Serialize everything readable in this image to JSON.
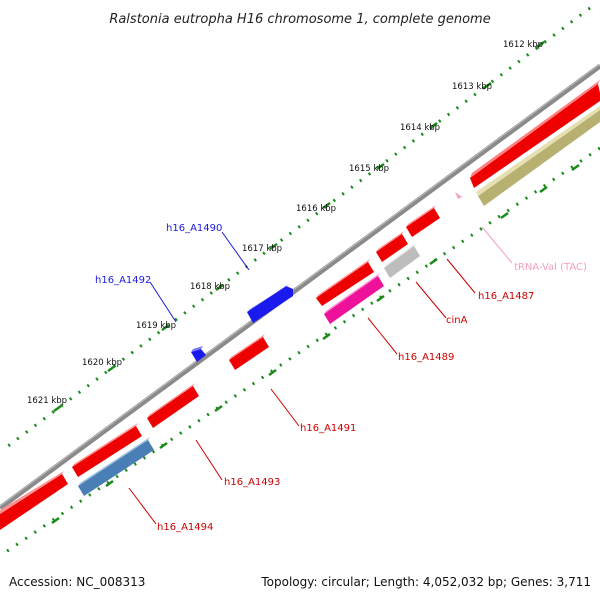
{
  "title": "Ralstonia eutropha H16 chromosome 1, complete genome",
  "footer": {
    "accession": "Accession: NC_008313",
    "summary": "Topology: circular; Length: 4,052,032 bp; Genes: 3,711"
  },
  "ticks": [
    "1612 kbp",
    "1613 kbp",
    "1614 kbp",
    "1615 kbp",
    "1616 kbp",
    "1617 kbp",
    "1618 kbp",
    "1619 kbp",
    "1620 kbp",
    "1621 kbp"
  ],
  "features": [
    {
      "label": "h16_A1490",
      "strand": "forward",
      "color": "#1a1add"
    },
    {
      "label": "h16_A1492",
      "strand": "forward",
      "color": "#1a1add"
    },
    {
      "label": "h16_A1487",
      "strand": "reverse",
      "color": "#cc0000"
    },
    {
      "label": "tRNA-Val (TAC)",
      "strand": "reverse",
      "color": "#f4a0c0"
    },
    {
      "label": "cinA",
      "strand": "reverse",
      "color": "#cc0000"
    },
    {
      "label": "h16_A1489",
      "strand": "reverse",
      "color": "#cc0000"
    },
    {
      "label": "h16_A1491",
      "strand": "reverse",
      "color": "#cc0000"
    },
    {
      "label": "h16_A1493",
      "strand": "reverse",
      "color": "#cc0000"
    },
    {
      "label": "h16_A1494",
      "strand": "reverse",
      "color": "#cc0000"
    }
  ],
  "colors": {
    "backbone": "#8a8a8a",
    "tick": "#1a8a1a",
    "cds_red": "#ee0000",
    "cds_blue": "#1a1aee",
    "cds_pink": "#ee1199",
    "cds_grey": "#c0c0c0",
    "cds_steel": "#4a7fb5",
    "rrna_olive": "#b8b070",
    "trna_pink": "#f4a0c0"
  }
}
